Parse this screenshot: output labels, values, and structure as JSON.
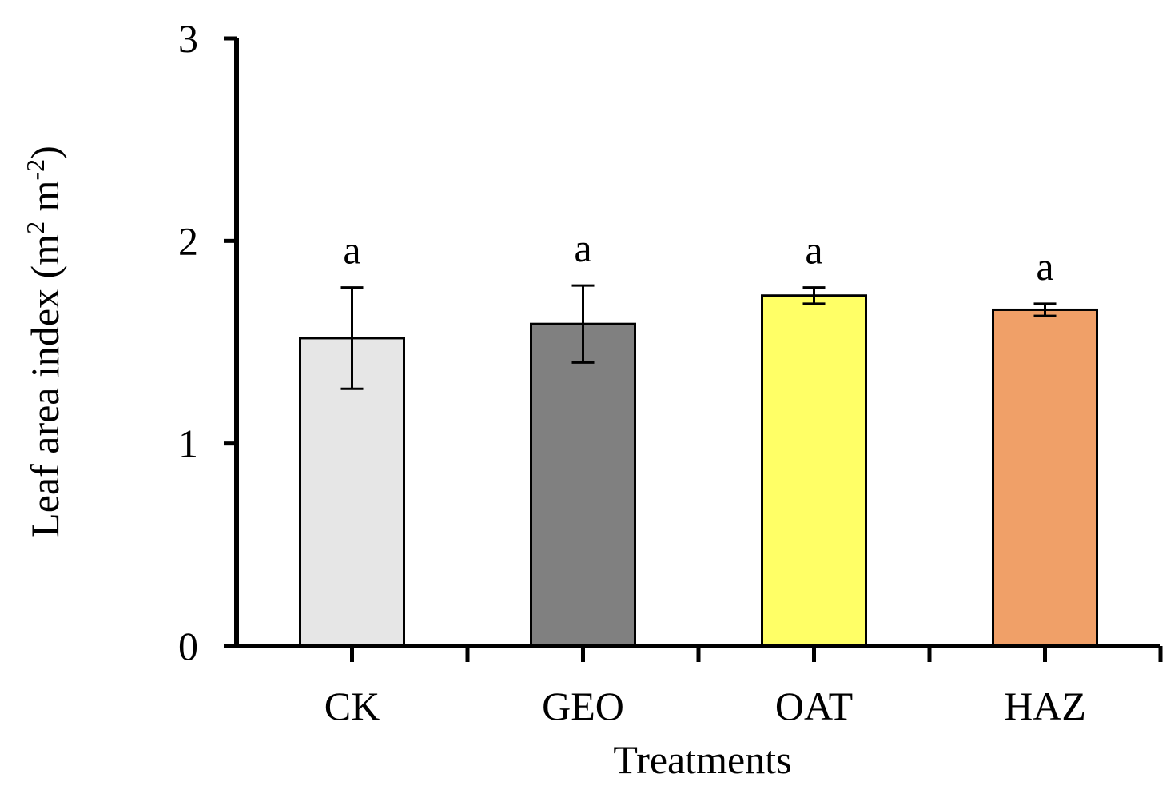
{
  "chart_data": {
    "type": "bar",
    "title": "",
    "categories": [
      "CK",
      "GEO",
      "OAT",
      "HAZ"
    ],
    "values": [
      1.52,
      1.59,
      1.73,
      1.66
    ],
    "errors": [
      0.25,
      0.19,
      0.04,
      0.03
    ],
    "significance": [
      "a",
      "a",
      "a",
      "a"
    ],
    "colors": [
      "#e6e6e6",
      "#808080",
      "#ffff66",
      "#f0a068"
    ],
    "xlabel": "Treatments",
    "ylabel_main": "Leaf area index (m",
    "ylabel_sup1": "2",
    "ylabel_mid": " m",
    "ylabel_sup2": "-2",
    "ylabel_end": ")",
    "ylim": [
      0,
      3
    ],
    "yticks": [
      0,
      1,
      2,
      3
    ],
    "ytick_labels": [
      "0",
      "1",
      "2",
      "3"
    ]
  }
}
